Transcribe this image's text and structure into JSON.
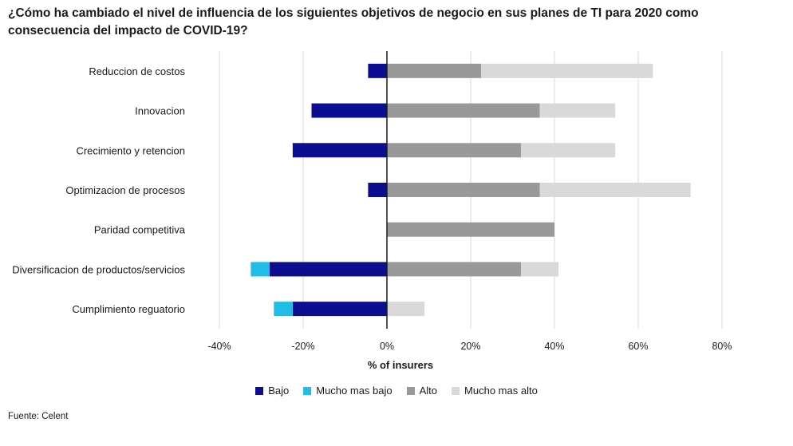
{
  "title": "¿Cómo ha cambiado el nivel de influencia de los siguientes objetivos de negocio en sus planes de TI para 2020 como consecuencia del impacto de COVID-19?",
  "source": "Fuente: Celent",
  "chart_data": {
    "type": "bar",
    "orientation": "horizontal",
    "stacked": "diverging",
    "title": "¿Cómo ha cambiado el nivel de influencia de los siguientes objetivos de negocio en sus planes de TI para 2020 como consecuencia del impacto de COVID-19?",
    "xlabel": "% of insurers",
    "ylabel": "",
    "xlim": [
      -40,
      80
    ],
    "xticks": [
      -40,
      -20,
      0,
      20,
      40,
      60,
      80
    ],
    "xtick_labels": [
      "-40%",
      "-20%",
      "0%",
      "20%",
      "40%",
      "60%",
      "80%"
    ],
    "grid": "vertical",
    "legend_position": "bottom",
    "categories": [
      "Reduccion de costos",
      "Innovacion",
      "Crecimiento y retencion",
      "Optimizacion de procesos",
      "Paridad competitiva",
      "Diversificacion de productos/servicios",
      "Cumplimiento reguatorio"
    ],
    "series": [
      {
        "name": "Bajo",
        "color": "#0d0d8f",
        "values": [
          -4.5,
          -18,
          -22.5,
          -4.5,
          0,
          -28,
          -22.5
        ]
      },
      {
        "name": "Mucho mas bajo",
        "color": "#1fbde8",
        "values": [
          0,
          0,
          0,
          0,
          0,
          -4.5,
          -4.5
        ]
      },
      {
        "name": "Alto",
        "color": "#999999",
        "values": [
          22.5,
          36.5,
          32,
          36.5,
          40,
          32,
          0
        ]
      },
      {
        "name": "Mucho mas alto",
        "color": "#d9d9d9",
        "values": [
          41,
          18,
          22.5,
          36,
          0,
          9,
          9
        ]
      }
    ]
  }
}
